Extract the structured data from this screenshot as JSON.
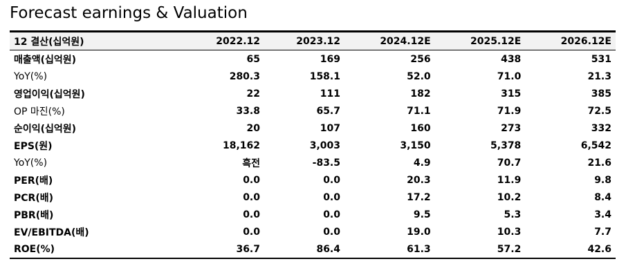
{
  "title": "Forecast earnings & Valuation",
  "table": {
    "header": [
      "12 결산(십억원)",
      "2022.12",
      "2023.12",
      "2024.12E",
      "2025.12E",
      "2026.12E"
    ],
    "rows": [
      [
        "매출액(십억원)",
        "65",
        "169",
        "256",
        "438",
        "531"
      ],
      [
        "YoY(%)",
        "280.3",
        "158.1",
        "52.0",
        "71.0",
        "21.3"
      ],
      [
        "영업이익(십억원)",
        "22",
        "111",
        "182",
        "315",
        "385"
      ],
      [
        "OP 마진(%)",
        "33.8",
        "65.7",
        "71.1",
        "71.9",
        "72.5"
      ],
      [
        "순이익(십억원)",
        "20",
        "107",
        "160",
        "273",
        "332"
      ],
      [
        "EPS(원)",
        "18,162",
        "3,003",
        "3,150",
        "5,378",
        "6,542"
      ],
      [
        "YoY(%)",
        "흑전",
        "-83.5",
        "4.9",
        "70.7",
        "21.6"
      ],
      [
        "PER(배)",
        "0.0",
        "0.0",
        "20.3",
        "11.9",
        "9.8"
      ],
      [
        "PCR(배)",
        "0.0",
        "0.0",
        "17.2",
        "10.2",
        "8.4"
      ],
      [
        "PBR(배)",
        "0.0",
        "0.0",
        "9.5",
        "5.3",
        "3.4"
      ],
      [
        "EV/EBITDA(배)",
        "0.0",
        "0.0",
        "19.0",
        "10.3",
        "7.7"
      ],
      [
        "ROE(%)",
        "36.7",
        "86.4",
        "61.3",
        "57.2",
        "42.6"
      ]
    ]
  }
}
